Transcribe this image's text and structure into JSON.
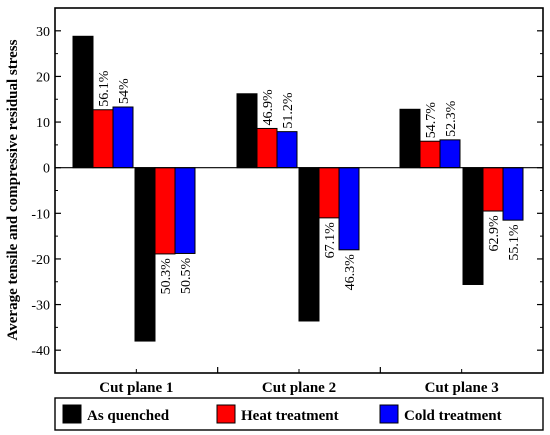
{
  "chart_data": {
    "type": "bar",
    "ylabel": "Average tensile and compressive residual stress",
    "xlabel": "",
    "categories": [
      "Cut plane 1",
      "Cut plane 2",
      "Cut plane 3"
    ],
    "ylim": [
      -45,
      35
    ],
    "yticks": [
      30,
      20,
      10,
      0,
      -10,
      -20,
      -30,
      -40
    ],
    "grid": false,
    "legend_position": "bottom",
    "series": [
      {
        "name": "As quenched",
        "color": "#000000",
        "tensile": [
          28.8,
          16.2,
          12.8
        ],
        "compressive": [
          -38.0,
          -33.6,
          -25.6
        ]
      },
      {
        "name": "Heat treatment",
        "color": "#ff0000",
        "tensile": [
          12.7,
          8.6,
          5.8
        ],
        "compressive": [
          -18.9,
          -11.0,
          -9.5
        ],
        "tensile_labels": [
          "56.1%",
          "46.9%",
          "54.7%"
        ],
        "compressive_labels": [
          "50.3%",
          "67.1%",
          "62.9%"
        ]
      },
      {
        "name": "Cold treatment",
        "color": "#0000ff",
        "tensile": [
          13.3,
          7.9,
          6.1
        ],
        "compressive": [
          -18.8,
          -18.0,
          -11.5
        ],
        "tensile_labels": [
          "54%",
          "51.2%",
          "52.3%"
        ],
        "compressive_labels": [
          "50.5%",
          "46.3%",
          "55.1%"
        ]
      }
    ]
  }
}
